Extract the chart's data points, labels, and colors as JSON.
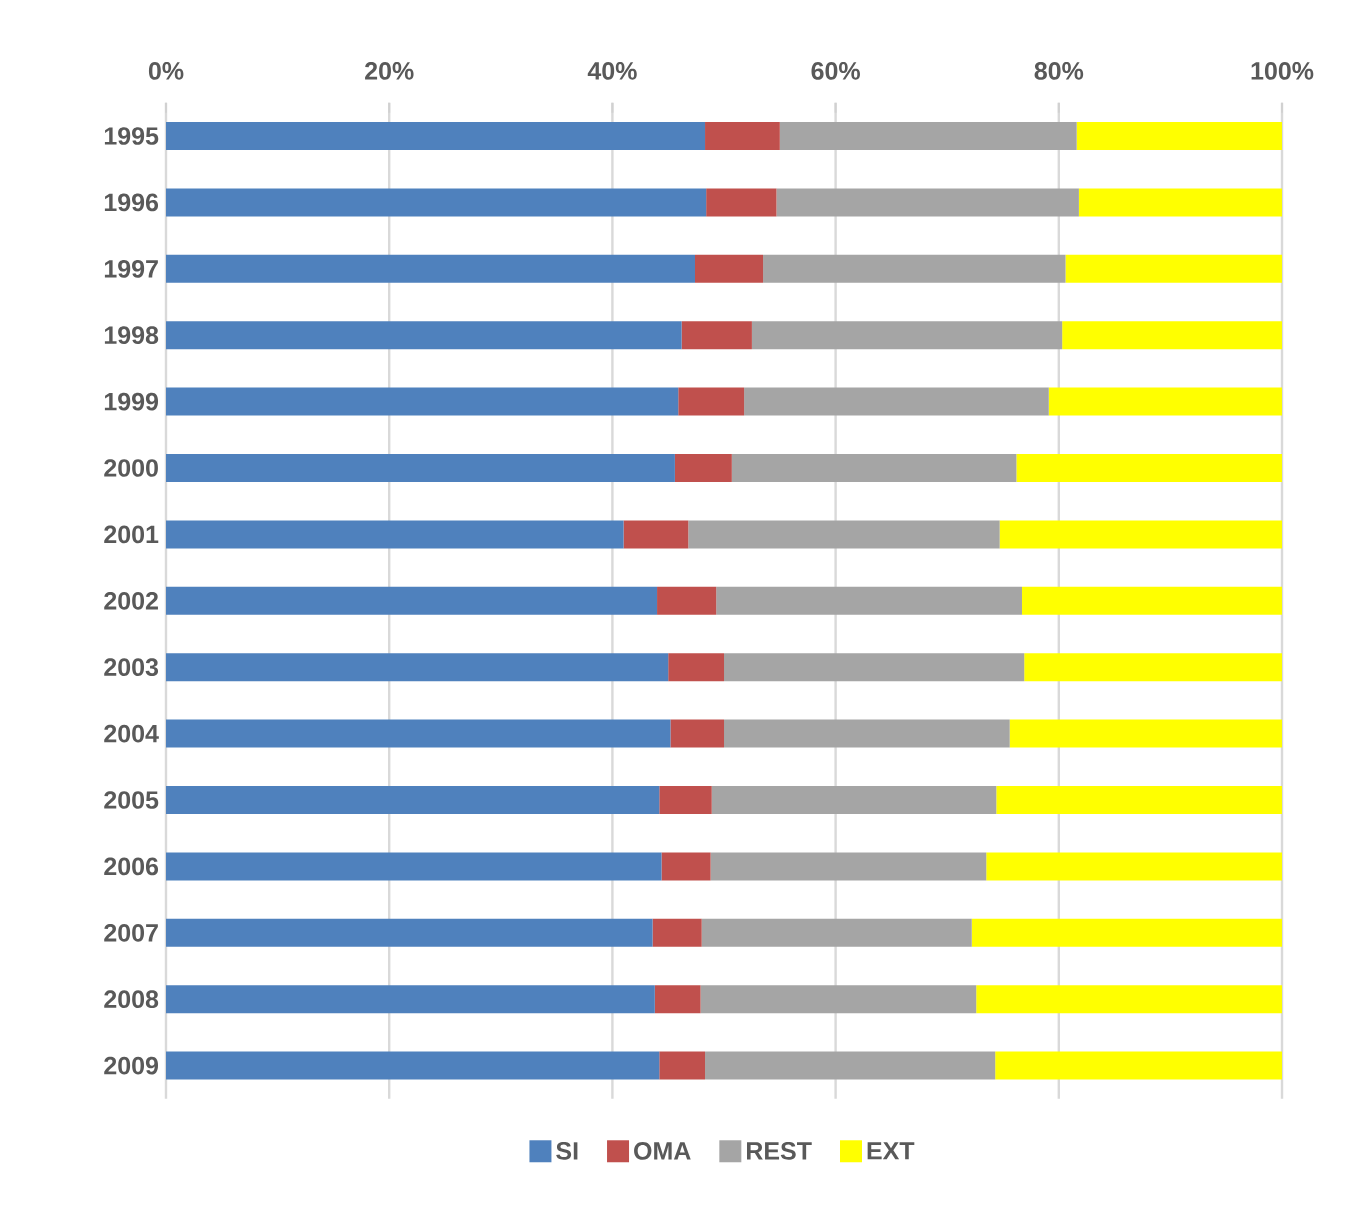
{
  "chart_data": {
    "type": "bar",
    "orientation": "horizontal",
    "stacked": true,
    "categories": [
      "1995",
      "1996",
      "1997",
      "1998",
      "1999",
      "2000",
      "2001",
      "2002",
      "2003",
      "2004",
      "2005",
      "2006",
      "2007",
      "2008",
      "2009"
    ],
    "series": [
      {
        "name": "SI",
        "color": "#4f81bd",
        "values": [
          48.3,
          48.4,
          47.4,
          46.2,
          45.9,
          45.6,
          41.0,
          44.0,
          45.0,
          45.2,
          44.2,
          44.4,
          43.6,
          43.8,
          44.2
        ]
      },
      {
        "name": "OMA",
        "color": "#c0504d",
        "values": [
          6.7,
          6.3,
          6.1,
          6.3,
          5.9,
          5.1,
          5.8,
          5.3,
          5.0,
          4.8,
          4.7,
          4.4,
          4.4,
          4.1,
          4.1
        ]
      },
      {
        "name": "REST",
        "color": "#a5a5a5",
        "values": [
          26.6,
          27.1,
          27.1,
          27.8,
          27.3,
          25.5,
          27.9,
          27.4,
          26.9,
          25.6,
          25.5,
          24.7,
          24.2,
          24.7,
          26.0
        ]
      },
      {
        "name": "EXT",
        "color": "#ffff00",
        "values": [
          18.4,
          18.2,
          19.4,
          19.7,
          20.9,
          23.8,
          25.3,
          23.3,
          23.1,
          24.4,
          25.6,
          26.5,
          27.8,
          27.4,
          25.7
        ]
      }
    ],
    "xlim": [
      0,
      100
    ],
    "xticks": [
      {
        "value": 0,
        "label": "0%"
      },
      {
        "value": 20,
        "label": "20%"
      },
      {
        "value": 40,
        "label": "40%"
      },
      {
        "value": 60,
        "label": "60%"
      },
      {
        "value": 80,
        "label": "80%"
      },
      {
        "value": 100,
        "label": "100%"
      }
    ],
    "grid": "x",
    "legend": "bottom"
  }
}
